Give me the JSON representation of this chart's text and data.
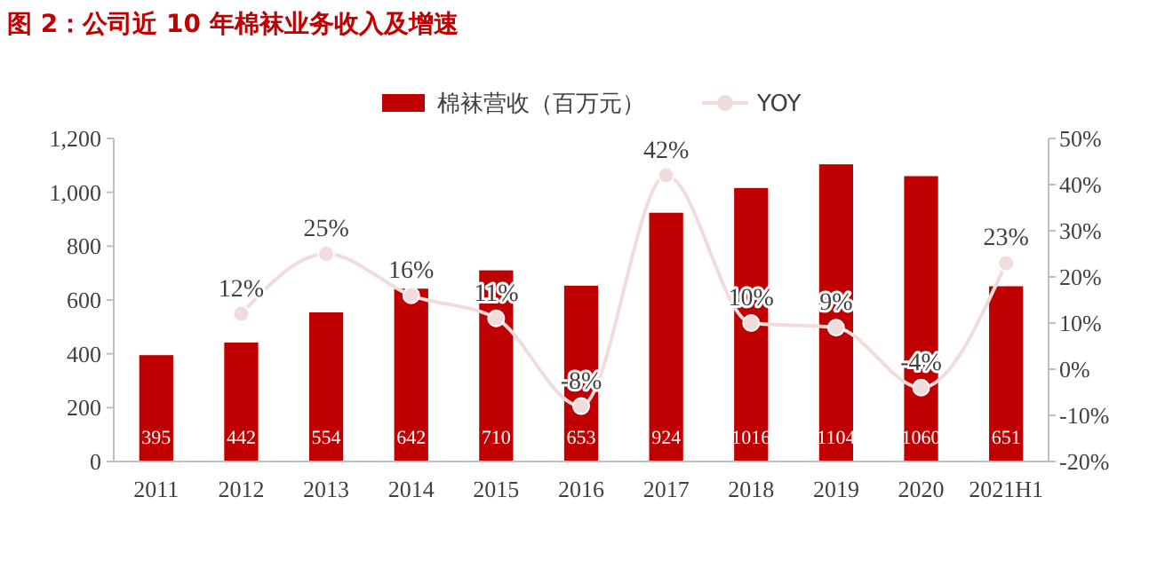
{
  "chart_data": {
    "type": "bar",
    "title": "图 2：公司近 10 年棉袜业务收入及增速",
    "categories": [
      "2011",
      "2012",
      "2013",
      "2014",
      "2015",
      "2016",
      "2017",
      "2018",
      "2019",
      "2020",
      "2021H1"
    ],
    "series": [
      {
        "name": "棉袜营收（百万元）",
        "color": "#c00000",
        "values": [
          395,
          442,
          554,
          642,
          710,
          653,
          924,
          1016,
          1104,
          1060,
          651
        ],
        "data_labels": true
      },
      {
        "name": "YOY",
        "type": "line",
        "axis": "y2",
        "color": "#f2dcdb",
        "marker": "circle",
        "values": [
          null,
          12,
          25,
          16,
          11,
          -8,
          42,
          10,
          9,
          -4,
          23
        ],
        "value_labels": [
          null,
          "12%",
          "25%",
          "16%",
          "11%",
          "-8%",
          "42%",
          "10%",
          "9%",
          "-4%",
          "23%"
        ]
      }
    ],
    "ylim": [
      0,
      1200
    ],
    "yticks": [
      {
        "value": 0,
        "label": "0"
      },
      {
        "value": 200,
        "label": "200"
      },
      {
        "value": 400,
        "label": "400"
      },
      {
        "value": 600,
        "label": "600"
      },
      {
        "value": 800,
        "label": "800"
      },
      {
        "value": 1000,
        "label": "1,000"
      },
      {
        "value": 1200,
        "label": "1,200"
      }
    ],
    "y2lim": [
      -20,
      50
    ],
    "y2ticks": [
      {
        "value": -20,
        "label": "-20%"
      },
      {
        "value": -10,
        "label": "-10%"
      },
      {
        "value": 0,
        "label": "0%"
      },
      {
        "value": 10,
        "label": "10%"
      },
      {
        "value": 20,
        "label": "20%"
      },
      {
        "value": 30,
        "label": "30%"
      },
      {
        "value": 40,
        "label": "40%"
      },
      {
        "value": 50,
        "label": "50%"
      }
    ],
    "legend": "top",
    "grid": false
  }
}
